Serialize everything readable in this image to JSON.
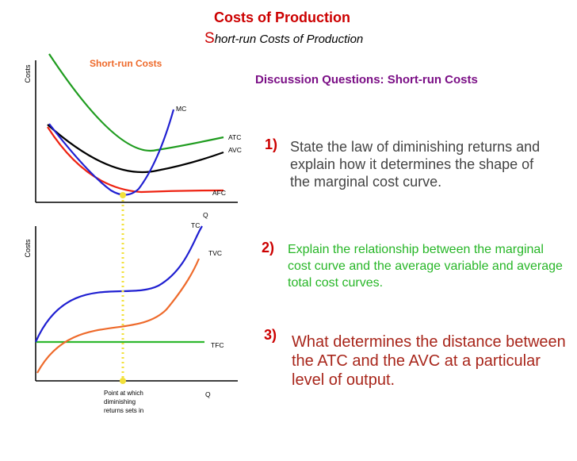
{
  "title": "Costs of Production",
  "subtitle_first": "S",
  "subtitle_rest": "hort-run Costs of Production",
  "top_chart": {
    "title": "Short-run Costs",
    "y_axis": "Costs",
    "labels": {
      "mc": "MC",
      "atc": "ATC",
      "avc": "AVC",
      "afc": "AFC",
      "q": "Q"
    },
    "colors": {
      "mc": "#1f1fd1",
      "atc": "#1f9c1f",
      "avc": "#000000",
      "afc": "#ee2211"
    }
  },
  "bottom_chart": {
    "y_axis": "Costs",
    "labels": {
      "tc": "TC",
      "tvc": "TVC",
      "tfc": "TFC",
      "q": "Q"
    },
    "colors": {
      "tc": "#1f1fd1",
      "tvc": "#ee6a2b",
      "tfc": "#2fb82f"
    }
  },
  "annotation": {
    "line1": "Point at which",
    "line2": "diminishing",
    "line3": "returns sets in",
    "color": "#f2e03a"
  },
  "discussion_title": "Discussion Questions: Short-run Costs",
  "questions": [
    {
      "number": "1)",
      "text": "State the law of diminishing returns and explain how it determines the shape of the marginal cost curve.",
      "color": "#444444"
    },
    {
      "number": "2)",
      "text": "Explain the relationship between the marginal cost curve and the average variable and average total cost curves.",
      "color": "#27b627"
    },
    {
      "number": "3)",
      "text": "What determines the distance between the ATC and the AVC at a particular level of output.",
      "color": "#a8261b"
    }
  ]
}
